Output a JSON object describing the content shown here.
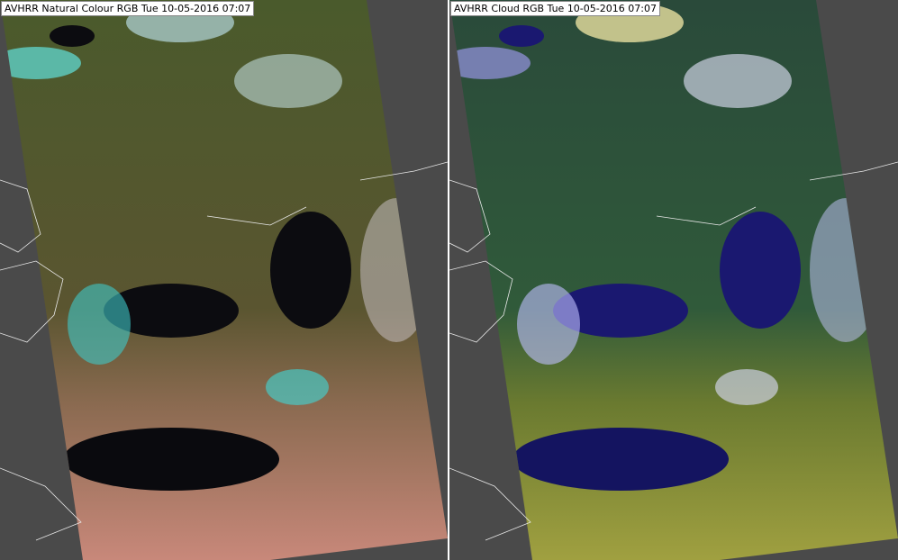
{
  "panels": [
    {
      "title": "AVHRR Natural Colour RGB Tue 10-05-2016 07:07"
    },
    {
      "title": "AVHRR Cloud RGB Tue 10-05-2016 07:07"
    }
  ]
}
